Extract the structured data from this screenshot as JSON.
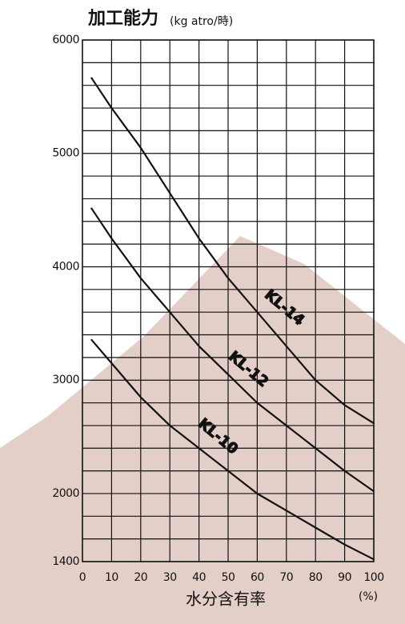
{
  "chart_data": {
    "type": "line",
    "title": "加工能力",
    "title_unit": "(kg atro/時)",
    "x_label": "水分含有率",
    "x_unit": "(%)",
    "xlim": [
      0,
      100
    ],
    "xticks": [
      0,
      10,
      20,
      30,
      40,
      50,
      60,
      70,
      80,
      90,
      100
    ],
    "ylim": [
      1400,
      6000
    ],
    "yticks": [
      1400,
      2000,
      3000,
      4000,
      5000,
      6000
    ],
    "y_minor_ticks": [
      1600,
      1800,
      2200,
      2400,
      2600,
      2800,
      3200,
      3400,
      3600,
      3800,
      4200,
      4400,
      4600,
      4800,
      5200,
      5400,
      5600,
      5800
    ],
    "grid": true,
    "x": [
      3,
      10,
      20,
      30,
      40,
      50,
      60,
      70,
      80,
      90,
      100
    ],
    "series": [
      {
        "name": "KL-14",
        "color": "#111111",
        "values": [
          5670,
          5400,
          5050,
          4650,
          4250,
          3900,
          3600,
          3300,
          3000,
          2780,
          2620
        ]
      },
      {
        "name": "KL-12",
        "color": "#111111",
        "values": [
          4520,
          4250,
          3900,
          3600,
          3300,
          3050,
          2800,
          2600,
          2400,
          2200,
          2020
        ]
      },
      {
        "name": "KL-10",
        "color": "#111111",
        "values": [
          3360,
          3150,
          2850,
          2600,
          2400,
          2200,
          2000,
          1850,
          1700,
          1550,
          1420
        ]
      }
    ]
  }
}
